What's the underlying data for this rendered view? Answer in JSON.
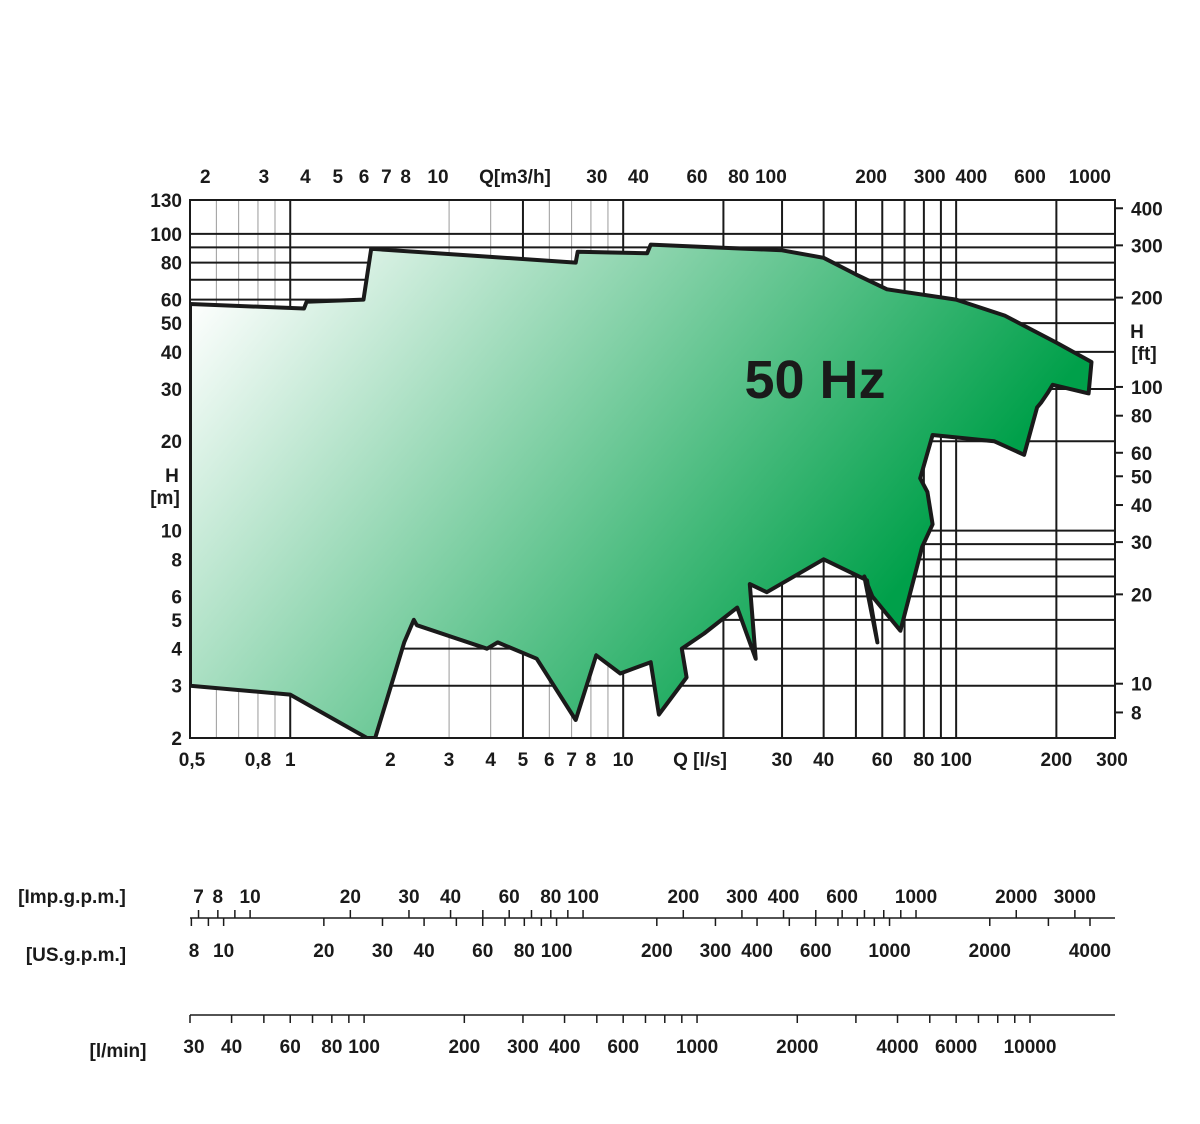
{
  "chart_data": {
    "type": "area",
    "title": "50 Hz",
    "x_bottom": {
      "label": "Q [l/s]",
      "scale": "log",
      "range": [
        0.5,
        300
      ],
      "ticks": [
        {
          "value": 0.5,
          "label": "0,5"
        },
        {
          "value": 0.8,
          "label": "0,8"
        },
        {
          "value": 1,
          "label": "1"
        },
        {
          "value": 2,
          "label": "2"
        },
        {
          "value": 3,
          "label": "3"
        },
        {
          "value": 4,
          "label": "4"
        },
        {
          "value": 5,
          "label": "5"
        },
        {
          "value": 6,
          "label": "6"
        },
        {
          "value": 7,
          "label": "7"
        },
        {
          "value": 8,
          "label": "8"
        },
        {
          "value": 10,
          "label": "10"
        },
        {
          "value": 30,
          "label": "30"
        },
        {
          "value": 40,
          "label": "40"
        },
        {
          "value": 60,
          "label": "60"
        },
        {
          "value": 80,
          "label": "80"
        },
        {
          "value": 100,
          "label": "100"
        },
        {
          "value": 200,
          "label": "200"
        },
        {
          "value": 300,
          "label": "300"
        }
      ]
    },
    "x_top": {
      "label": "Q[m3/h]",
      "scale": "log",
      "ticks": [
        {
          "value": 2,
          "label": "2"
        },
        {
          "value": 3,
          "label": "3"
        },
        {
          "value": 4,
          "label": "4"
        },
        {
          "value": 5,
          "label": "5"
        },
        {
          "value": 6,
          "label": "6"
        },
        {
          "value": 7,
          "label": "7"
        },
        {
          "value": 8,
          "label": "8"
        },
        {
          "value": 10,
          "label": "10"
        },
        {
          "value": 30,
          "label": "30"
        },
        {
          "value": 40,
          "label": "40"
        },
        {
          "value": 60,
          "label": "60"
        },
        {
          "value": 80,
          "label": "80"
        },
        {
          "value": 100,
          "label": "100"
        },
        {
          "value": 200,
          "label": "200"
        },
        {
          "value": 300,
          "label": "300"
        },
        {
          "value": 400,
          "label": "400"
        },
        {
          "value": 600,
          "label": "600"
        },
        {
          "value": 1000,
          "label": "1000"
        }
      ]
    },
    "y_left": {
      "label_line1": "H",
      "label_line2": "[m]",
      "scale": "log",
      "range": [
        2,
        130
      ],
      "ticks": [
        {
          "value": 2,
          "label": "2"
        },
        {
          "value": 3,
          "label": "3"
        },
        {
          "value": 4,
          "label": "4"
        },
        {
          "value": 5,
          "label": "5"
        },
        {
          "value": 6,
          "label": "6"
        },
        {
          "value": 8,
          "label": "8"
        },
        {
          "value": 10,
          "label": "10"
        },
        {
          "value": 20,
          "label": "20"
        },
        {
          "value": 30,
          "label": "30"
        },
        {
          "value": 40,
          "label": "40"
        },
        {
          "value": 50,
          "label": "50"
        },
        {
          "value": 60,
          "label": "60"
        },
        {
          "value": 80,
          "label": "80"
        },
        {
          "value": 100,
          "label": "100"
        },
        {
          "value": 130,
          "label": "130"
        }
      ]
    },
    "y_right": {
      "label_line1": "H",
      "label_line2": "[ft]",
      "scale": "log",
      "ticks": [
        {
          "value": 8,
          "label": "8"
        },
        {
          "value": 10,
          "label": "10"
        },
        {
          "value": 20,
          "label": "20"
        },
        {
          "value": 30,
          "label": "30"
        },
        {
          "value": 40,
          "label": "40"
        },
        {
          "value": 50,
          "label": "50"
        },
        {
          "value": 60,
          "label": "60"
        },
        {
          "value": 80,
          "label": "80"
        },
        {
          "value": 100,
          "label": "100"
        },
        {
          "value": 200,
          "label": "200"
        },
        {
          "value": 300,
          "label": "300"
        },
        {
          "value": 400,
          "label": "400"
        }
      ]
    },
    "grid": true,
    "envelope": {
      "x": [
        0.5,
        0.5,
        1.1,
        1.12,
        1.66,
        1.75,
        7.2,
        7.3,
        11.8,
        12.1,
        30,
        40,
        50,
        62,
        100,
        140,
        200,
        255,
        250,
        195,
        188,
        180,
        175,
        160,
        130,
        85,
        78,
        82,
        85,
        79,
        68,
        56,
        53,
        58,
        54,
        40,
        27,
        24,
        25,
        22,
        17.5,
        15,
        15.5,
        12.8,
        12.1,
        9.8,
        8.3,
        7.2,
        5.5,
        4.2,
        3.9,
        2.4,
        2.35,
        2.2,
        1.8,
        1.7,
        1.0,
        0.5
      ],
      "y": [
        3.0,
        58,
        56,
        59,
        60,
        89,
        80,
        87,
        86,
        92,
        88,
        83,
        73,
        65,
        60,
        53,
        43,
        37,
        29,
        31,
        29,
        27,
        26,
        18,
        20,
        21,
        15,
        13.5,
        10.5,
        8.8,
        4.6,
        6.0,
        7.0,
        4.2,
        6.8,
        8.0,
        6.2,
        6.6,
        3.7,
        5.5,
        4.5,
        4.0,
        3.2,
        2.4,
        3.6,
        3.3,
        3.8,
        2.3,
        3.7,
        4.2,
        4.0,
        4.8,
        5.0,
        4.2,
        2.0,
        2.0,
        2.8,
        3.0
      ]
    },
    "secondary_scales": [
      {
        "label": "[Imp.g.p.m.]",
        "scale": "log",
        "ticks": [
          {
            "value": 7,
            "label": "7"
          },
          {
            "value": 8,
            "label": "8"
          },
          {
            "value": 10,
            "label": "10"
          },
          {
            "value": 20,
            "label": "20"
          },
          {
            "value": 30,
            "label": "30"
          },
          {
            "value": 40,
            "label": "40"
          },
          {
            "value": 60,
            "label": "60"
          },
          {
            "value": 80,
            "label": "80"
          },
          {
            "value": 100,
            "label": "100"
          },
          {
            "value": 200,
            "label": "200"
          },
          {
            "value": 300,
            "label": "300"
          },
          {
            "value": 400,
            "label": "400"
          },
          {
            "value": 600,
            "label": "600"
          },
          {
            "value": 1000,
            "label": "1000"
          },
          {
            "value": 2000,
            "label": "2000"
          },
          {
            "value": 3000,
            "label": "3000"
          }
        ]
      },
      {
        "label": "[US.g.p.m.]",
        "scale": "log",
        "ticks": [
          {
            "value": 8,
            "label": "8"
          },
          {
            "value": 10,
            "label": "10"
          },
          {
            "value": 20,
            "label": "20"
          },
          {
            "value": 30,
            "label": "30"
          },
          {
            "value": 40,
            "label": "40"
          },
          {
            "value": 60,
            "label": "60"
          },
          {
            "value": 80,
            "label": "80"
          },
          {
            "value": 100,
            "label": "100"
          },
          {
            "value": 200,
            "label": "200"
          },
          {
            "value": 300,
            "label": "300"
          },
          {
            "value": 400,
            "label": "400"
          },
          {
            "value": 600,
            "label": "600"
          },
          {
            "value": 1000,
            "label": "1000"
          },
          {
            "value": 2000,
            "label": "2000"
          },
          {
            "value": 4000,
            "label": "4000"
          }
        ]
      },
      {
        "label": "[l/min]",
        "scale": "log",
        "ticks": [
          {
            "value": 30,
            "label": "30"
          },
          {
            "value": 40,
            "label": "40"
          },
          {
            "value": 60,
            "label": "60"
          },
          {
            "value": 80,
            "label": "80"
          },
          {
            "value": 100,
            "label": "100"
          },
          {
            "value": 200,
            "label": "200"
          },
          {
            "value": 300,
            "label": "300"
          },
          {
            "value": 400,
            "label": "400"
          },
          {
            "value": 600,
            "label": "600"
          },
          {
            "value": 1000,
            "label": "1000"
          },
          {
            "value": 2000,
            "label": "2000"
          },
          {
            "value": 4000,
            "label": "4000"
          },
          {
            "value": 6000,
            "label": "6000"
          },
          {
            "value": 10000,
            "label": "10000"
          }
        ]
      }
    ],
    "colors": {
      "fill_light": "#ffffff",
      "fill_dark": "#00a04a",
      "outline": "#1a1a1a",
      "grid": "#1a1a1a",
      "minor_grid": "#9a9a9a"
    }
  }
}
